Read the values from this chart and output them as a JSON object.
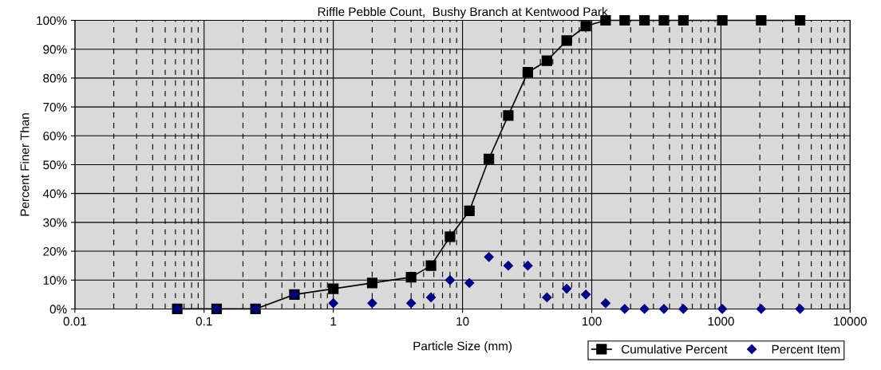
{
  "chart_data": {
    "type": "line",
    "title": "Riffle Pebble Count,  Bushy Branch at Kentwood Park",
    "xlabel": "Particle Size (mm)",
    "ylabel": "Percent Finer Than",
    "x": [
      0.062,
      0.125,
      0.25,
      0.5,
      1,
      2,
      4,
      5.7,
      8,
      11.3,
      16,
      22.6,
      32,
      45,
      64,
      90,
      128,
      180,
      256,
      362,
      512,
      1024,
      2048,
      4096
    ],
    "series": [
      {
        "name": "Cumulative Percent",
        "color": "#000000",
        "marker": "square",
        "values": [
          0,
          0,
          0,
          5,
          7,
          9,
          11,
          15,
          25,
          34,
          52,
          67,
          82,
          86,
          93,
          98,
          100,
          100,
          100,
          100,
          100,
          100,
          100,
          100
        ]
      },
      {
        "name": "Percent Item",
        "type": "scatter",
        "color": "#000080",
        "marker": "diamond",
        "values": [
          0,
          0,
          0,
          5,
          2,
          2,
          2,
          4,
          10,
          9,
          18,
          15,
          15,
          4,
          7,
          5,
          2,
          0,
          0,
          0,
          0,
          0,
          0,
          0
        ]
      }
    ],
    "log": "x",
    "xlim": [
      0.01,
      10000
    ],
    "xticks": [
      0.01,
      0.1,
      1,
      10,
      100,
      1000,
      10000
    ],
    "ylim": [
      0,
      100
    ],
    "yticks": [
      {
        "value": 0,
        "label": "0%"
      },
      {
        "value": 10,
        "label": "10%"
      },
      {
        "value": 20,
        "label": "20%"
      },
      {
        "value": 30,
        "label": "30%"
      },
      {
        "value": 40,
        "label": "40%"
      },
      {
        "value": 50,
        "label": "50%"
      },
      {
        "value": 60,
        "label": "60%"
      },
      {
        "value": 70,
        "label": "70%"
      },
      {
        "value": 80,
        "label": "80%"
      },
      {
        "value": 90,
        "label": "90%"
      },
      {
        "value": 100,
        "label": "100%"
      }
    ],
    "grid": true,
    "legend": "bottom right"
  }
}
